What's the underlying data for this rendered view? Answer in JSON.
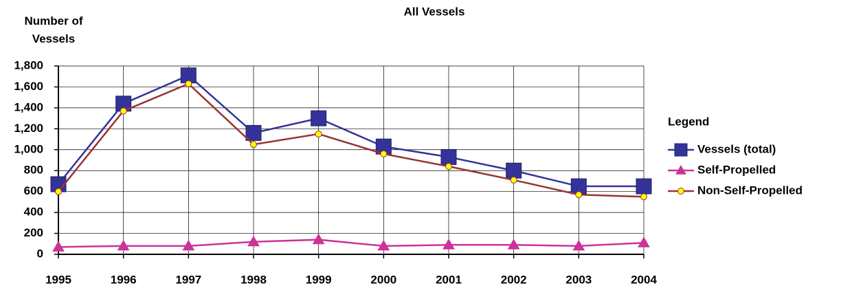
{
  "chart_data": {
    "type": "line",
    "title": "All Vessels",
    "y_label": "Number of Vessels",
    "categories": [
      "1995",
      "1996",
      "1997",
      "1998",
      "1999",
      "2000",
      "2001",
      "2002",
      "2003",
      "2004"
    ],
    "series": [
      {
        "name": "Vessels (total)",
        "color": "#333399",
        "marker": "square",
        "marker_color": "#333399",
        "values": [
          670,
          1440,
          1710,
          1160,
          1300,
          1030,
          930,
          800,
          650,
          650
        ]
      },
      {
        "name": "Self-Propelled",
        "color": "#cc3399",
        "marker": "triangle",
        "marker_color": "#cc3399",
        "values": [
          70,
          80,
          80,
          120,
          140,
          80,
          90,
          90,
          80,
          110
        ]
      },
      {
        "name": "Non-Self-Propelled",
        "color": "#993333",
        "marker": "circle",
        "marker_color": "#ffff00",
        "values": [
          600,
          1370,
          1630,
          1050,
          1150,
          960,
          840,
          710,
          570,
          550
        ]
      }
    ],
    "ylim": [
      0,
      1800
    ],
    "yticks": [
      0,
      200,
      400,
      600,
      800,
      {
        "value": 1000,
        "label": "1,000"
      },
      {
        "value": 1200,
        "label": "1,200"
      },
      {
        "value": 1400,
        "label": "1,400"
      },
      {
        "value": 1600,
        "label": "1,600"
      },
      {
        "value": 1800,
        "label": "1,800"
      }
    ],
    "grid": true,
    "legend_title": "Legend",
    "legend": "right"
  }
}
